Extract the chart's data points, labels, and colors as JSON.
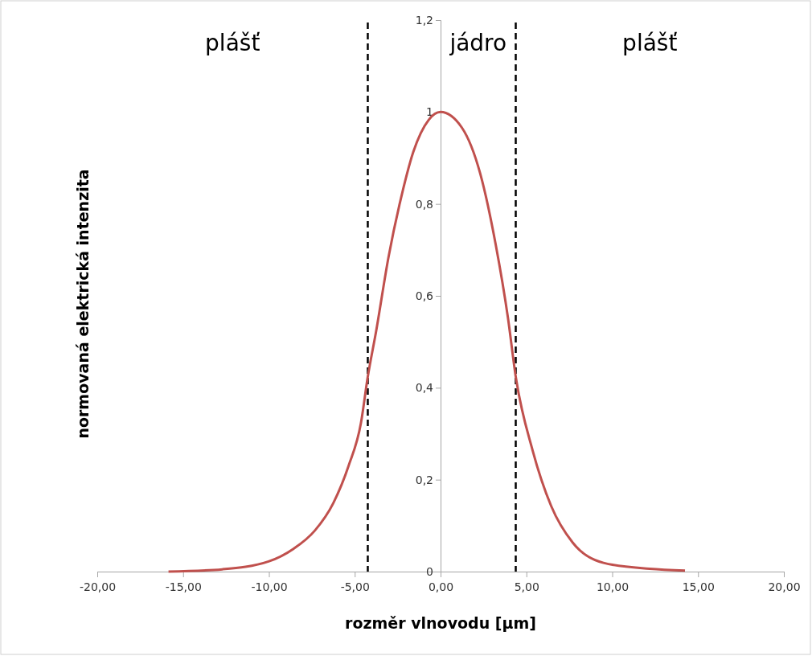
{
  "chart_data": {
    "type": "line",
    "xlabel": "rozměr vlnovodu [µm]",
    "ylabel": "normovaná elektrická intenzita",
    "x": [
      -15.85,
      -12.71,
      -10.02,
      -8.59,
      -7.33,
      -6.25,
      -5.36,
      -4.64,
      -4.24,
      -3.75,
      -3.03,
      -2.31,
      -1.59,
      -0.69,
      0,
      1.24,
      2.31,
      3.21,
      3.93,
      4.38,
      5.36,
      6.44,
      7.7,
      9.49,
      12.18,
      14.24
    ],
    "series": [
      {
        "color": "#c0504d",
        "values": [
          0,
          0.005,
          0.022,
          0.049,
          0.089,
          0.149,
          0.23,
          0.323,
          0.424,
          0.524,
          0.685,
          0.812,
          0.913,
          0.983,
          1,
          0.966,
          0.866,
          0.712,
          0.551,
          0.424,
          0.264,
          0.143,
          0.063,
          0.019,
          0.006,
          0.002
        ]
      }
    ],
    "xlim": [
      -20,
      20
    ],
    "xticks": [
      {
        "value": -20,
        "label": "-20,00"
      },
      {
        "value": -15,
        "label": "-15,00"
      },
      {
        "value": -10,
        "label": "-10,00"
      },
      {
        "value": -5,
        "label": "-5,00"
      },
      {
        "value": 0,
        "label": "0,00"
      },
      {
        "value": 5,
        "label": "5,00"
      },
      {
        "value": 10,
        "label": "10,00"
      },
      {
        "value": 15,
        "label": "15,00"
      },
      {
        "value": 20,
        "label": "20,00"
      }
    ],
    "ylim": [
      0,
      1.2
    ],
    "yticks": [
      0,
      {
        "value": 0.2,
        "label": "0,2"
      },
      {
        "value": 0.4,
        "label": "0,4"
      },
      {
        "value": 0.6,
        "label": "0,6"
      },
      {
        "value": 0.8,
        "label": "0,8"
      },
      1,
      {
        "value": 1.2,
        "label": "1,2"
      }
    ],
    "grid": false,
    "marker": "none",
    "line_style": "solid",
    "ref_lines": [
      {
        "axis": "x",
        "value": -4.24,
        "color": "#000000",
        "line_style": "dashed"
      },
      {
        "axis": "x",
        "value": 4.38,
        "color": "#000000",
        "line_style": "dashed"
      }
    ],
    "annotations": [
      "plášť",
      "jádro",
      "plášť"
    ]
  }
}
